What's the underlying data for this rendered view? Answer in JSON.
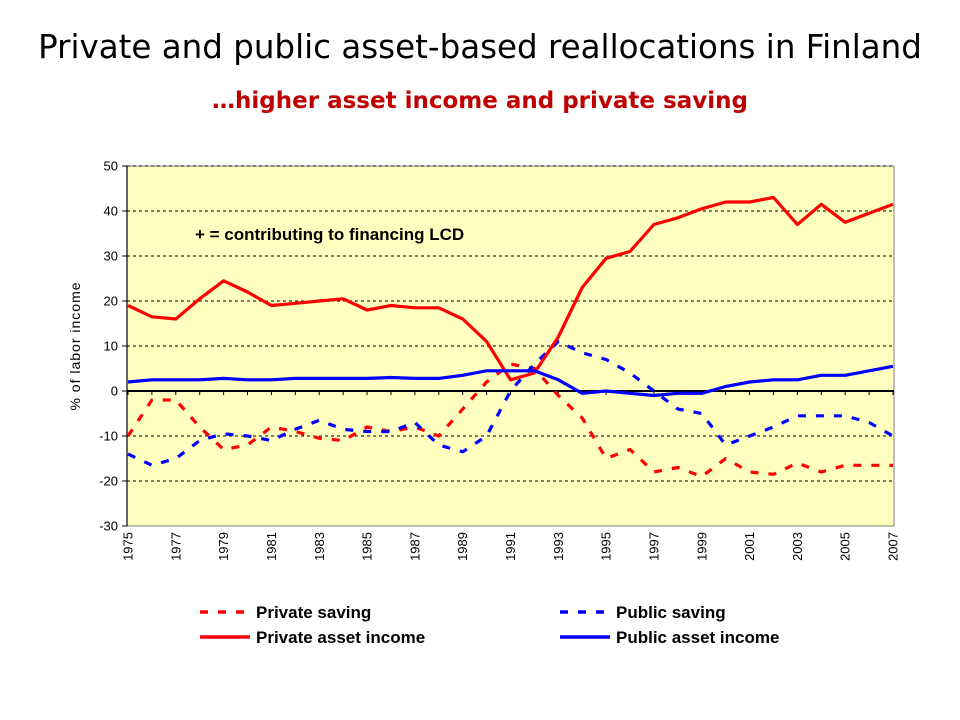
{
  "title": "Private and public asset-based reallocations in Finland",
  "subtitle": "…higher asset income and private saving",
  "chart_data": {
    "type": "line",
    "ylabel": "% of labor income",
    "xlabel": "",
    "ylim": [
      -30,
      50
    ],
    "yticks": [
      50,
      40,
      30,
      20,
      10,
      0,
      -10,
      -20,
      -30
    ],
    "xlim": [
      1975,
      2007
    ],
    "xtick_labels": [
      "1975",
      "1977",
      "1979",
      "1981",
      "1983",
      "1985",
      "1987",
      "1989",
      "1991",
      "1993",
      "1995",
      "1997",
      "1999",
      "2001",
      "2003",
      "2005",
      "2007"
    ],
    "annotation": "+ = contributing to financing LCD",
    "grid": "horizontal",
    "plot_background": "#ffffc0",
    "legend_position": "bottom",
    "x": [
      1975,
      1976,
      1977,
      1978,
      1979,
      1980,
      1981,
      1982,
      1983,
      1984,
      1985,
      1986,
      1987,
      1988,
      1989,
      1990,
      1991,
      1992,
      1993,
      1994,
      1995,
      1996,
      1997,
      1998,
      1999,
      2000,
      2001,
      2002,
      2003,
      2004,
      2005,
      2006,
      2007
    ],
    "series": [
      {
        "name": "Private saving",
        "color": "#ff0000",
        "style": "dashed",
        "values": [
          -10,
          -2,
          -2,
          -8,
          -13,
          -12,
          -8,
          -9,
          -10.5,
          -11,
          -8,
          -9,
          -8,
          -10,
          -4,
          2,
          6,
          5,
          -1,
          -6,
          -15,
          -13,
          -18,
          -17,
          -19,
          -15,
          -18,
          -18.5,
          -16,
          -18,
          -16.5,
          -16.5,
          -16.5
        ]
      },
      {
        "name": "Public saving",
        "color": "#0000ff",
        "style": "dashed",
        "values": [
          -14,
          -16.5,
          -15,
          -11,
          -9.5,
          -10,
          -11,
          -8.5,
          -6.5,
          -8.5,
          -9,
          -9,
          -7,
          -12,
          -13.5,
          -10,
          0,
          6,
          11,
          8.5,
          7,
          4,
          0,
          -4,
          -5,
          -12,
          -10,
          -8,
          -5.5,
          -5.5,
          -5.5,
          -7,
          -10
        ]
      },
      {
        "name": "Private asset income",
        "color": "#ff0000",
        "style": "solid",
        "values": [
          19,
          16.5,
          16,
          20.5,
          24.5,
          22,
          19,
          19.5,
          20,
          20.5,
          18,
          19,
          18.5,
          18.5,
          16,
          11,
          2.5,
          4,
          12,
          23,
          29.5,
          31,
          37,
          38.5,
          40.5,
          42,
          42,
          43,
          37,
          41.5,
          37.5,
          39.5,
          41.5
        ]
      },
      {
        "name": "Public asset income",
        "color": "#0000ff",
        "style": "solid",
        "values": [
          2,
          2.5,
          2.5,
          2.5,
          2.8,
          2.5,
          2.5,
          2.8,
          2.8,
          2.8,
          2.8,
          3,
          2.8,
          2.8,
          3.5,
          4.5,
          4.5,
          4.5,
          2.5,
          -0.5,
          0,
          -0.5,
          -1,
          -0.5,
          -0.5,
          1,
          2,
          2.5,
          2.5,
          3.5,
          3.5,
          4.5,
          5.5
        ]
      }
    ]
  },
  "legend": {
    "items": [
      {
        "name": "Private saving",
        "color": "#ff0000",
        "style": "dashed"
      },
      {
        "name": "Public saving",
        "color": "#0000ff",
        "style": "dashed"
      },
      {
        "name": "Private asset income",
        "color": "#ff0000",
        "style": "solid"
      },
      {
        "name": "Public asset income",
        "color": "#0000ff",
        "style": "solid"
      }
    ]
  }
}
